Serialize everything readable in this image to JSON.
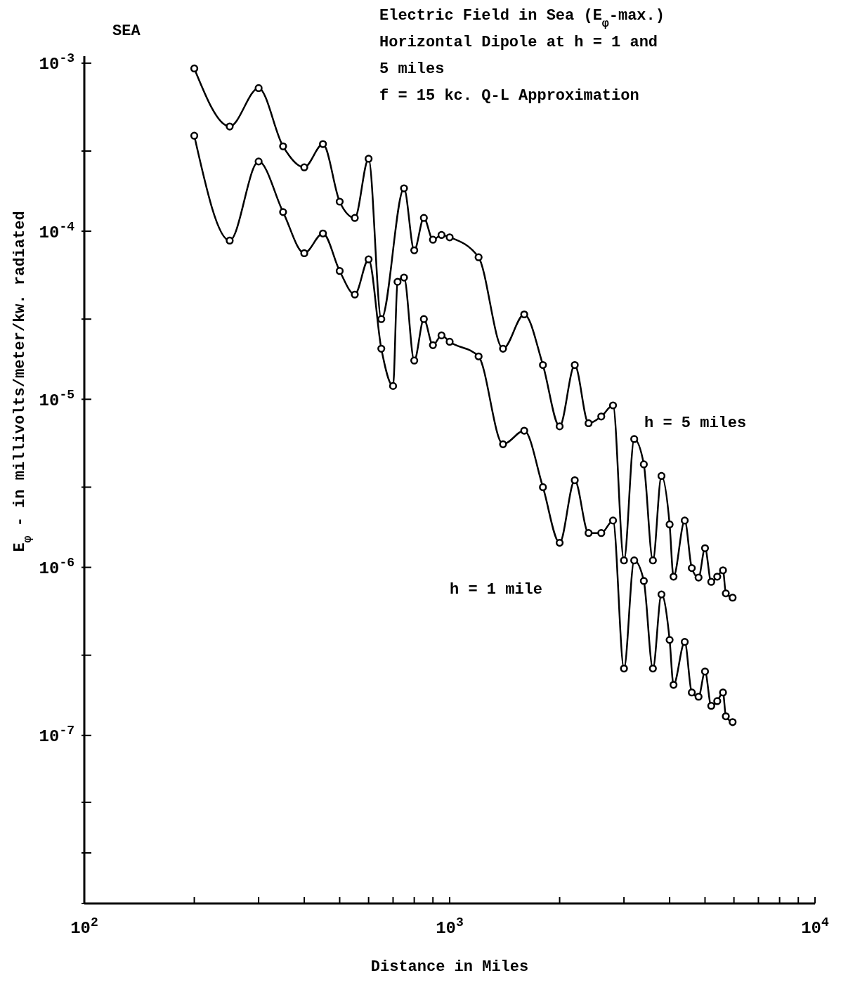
{
  "chart_data": {
    "type": "line",
    "title": "Electric Field in Sea (E$_{φ}$-max.)",
    "subtitle": "Horizontal Dipole at h = 1 and 5 miles",
    "annotations": [
      "f = 15 kc.  Q-L Approximation",
      "SEA"
    ],
    "xlabel": "Distance in Miles",
    "ylabel": "E$_{φ}$ - in millivolts/meter/kw. radiated",
    "log": "xy",
    "grid": false,
    "marker": "circle",
    "line_style": "solid",
    "xlim": [
      100,
      10000
    ],
    "xticks": [
      {
        "value": 100,
        "label": "10$^{2}$"
      },
      {
        "value": 200,
        "label": null
      },
      {
        "value": 300,
        "label": null
      },
      {
        "value": 400,
        "label": null
      },
      {
        "value": 500,
        "label": null
      },
      {
        "value": 600,
        "label": null
      },
      {
        "value": 700,
        "label": null
      },
      {
        "value": 800,
        "label": null
      },
      {
        "value": 900,
        "label": null
      },
      {
        "value": 1000,
        "label": "10$^{3}$"
      },
      {
        "value": 2000,
        "label": null
      },
      {
        "value": 3000,
        "label": null
      },
      {
        "value": 4000,
        "label": null
      },
      {
        "value": 5000,
        "label": null
      },
      {
        "value": 6000,
        "label": null
      },
      {
        "value": 7000,
        "label": null
      },
      {
        "value": 8000,
        "label": null
      },
      {
        "value": 9000,
        "label": null
      },
      {
        "value": 10000,
        "label": "10$^{4}$"
      }
    ],
    "ylim": [
      1e-08,
      0.0011
    ],
    "yticks": [
      {
        "value": 0.001,
        "label": "10$^{-3}$"
      },
      {
        "value": 0.0003,
        "label": null
      },
      {
        "value": 0.0001,
        "label": "10$^{-4}$"
      },
      {
        "value": 3e-05,
        "label": null
      },
      {
        "value": 1e-05,
        "label": "10$^{-5}$"
      },
      {
        "value": 3e-06,
        "label": null
      },
      {
        "value": 1e-06,
        "label": "10$^{-6}$"
      },
      {
        "value": 3e-07,
        "label": null
      },
      {
        "value": 1e-07,
        "label": "10$^{-7}$"
      },
      {
        "value": 4e-08,
        "label": null
      },
      {
        "value": 2e-08,
        "label": null
      },
      {
        "value": 1e-08,
        "label": null
      }
    ],
    "series": [
      {
        "name": "h = 5 miles",
        "color": "#000000",
        "x": [
          200,
          250,
          300,
          350,
          400,
          450,
          500,
          550,
          600,
          650,
          750,
          800,
          850,
          900,
          950,
          1000,
          1200,
          1400,
          1600,
          1800,
          2000,
          2200,
          2400,
          2600,
          2800,
          3000,
          3200,
          3400,
          3600,
          3800,
          4000,
          4100,
          4400,
          4600,
          4800,
          5000,
          5200,
          5400,
          5600,
          5700,
          5950
        ],
        "values": [
          0.00093,
          0.00042,
          0.00071,
          0.00032,
          0.00024,
          0.00033,
          0.00015,
          0.00012,
          0.00027,
          3e-05,
          0.00018,
          7.7e-05,
          0.00012,
          8.9e-05,
          9.5e-05,
          9.2e-05,
          7e-05,
          2e-05,
          3.2e-05,
          1.6e-05,
          6.9e-06,
          1.6e-05,
          7.2e-06,
          7.9e-06,
          9.2e-06,
          1.1e-06,
          5.8e-06,
          4.1e-06,
          1.1e-06,
          3.5e-06,
          1.8e-06,
          8.8e-07,
          1.9e-06,
          9.9e-07,
          8.7e-07,
          1.3e-06,
          8.2e-07,
          8.8e-07,
          9.6e-07,
          7e-07,
          6.6e-07
        ]
      },
      {
        "name": "h = 1 mile",
        "color": "#000000",
        "x": [
          200,
          250,
          300,
          350,
          400,
          450,
          500,
          550,
          600,
          650,
          700,
          720,
          750,
          800,
          850,
          900,
          950,
          1000,
          1200,
          1400,
          1600,
          1800,
          2000,
          2200,
          2400,
          2600,
          2800,
          3000,
          3200,
          3400,
          3600,
          3800,
          4000,
          4100,
          4400,
          4600,
          4800,
          5000,
          5200,
          5400,
          5600,
          5700,
          5950
        ],
        "values": [
          0.00037,
          8.8e-05,
          0.00026,
          0.00013,
          7.4e-05,
          9.7e-05,
          5.8e-05,
          4.2e-05,
          6.8e-05,
          2e-05,
          1.2e-05,
          5e-05,
          5.3e-05,
          1.7e-05,
          3e-05,
          2.1e-05,
          2.4e-05,
          2.2e-05,
          1.8e-05,
          5.4e-06,
          6.5e-06,
          3e-06,
          1.4e-06,
          3.3e-06,
          1.6e-06,
          1.6e-06,
          1.9e-06,
          2.5e-07,
          1.1e-06,
          8.3e-07,
          2.5e-07,
          6.9e-07,
          3.7e-07,
          2e-07,
          3.6e-07,
          1.8e-07,
          1.7e-07,
          2.4e-07,
          1.5e-07,
          1.6e-07,
          1.8e-07,
          1.3e-07,
          1.2e-07
        ]
      }
    ]
  }
}
